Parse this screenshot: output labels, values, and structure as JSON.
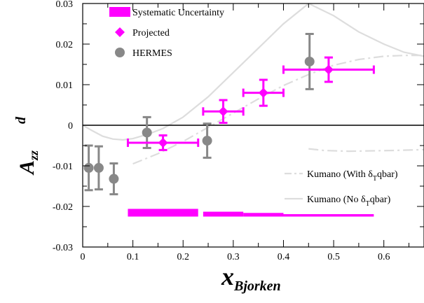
{
  "chart_data": {
    "type": "scatter",
    "title": "",
    "xlabel": {
      "main": "x",
      "sub": "Bjorken"
    },
    "ylabel": {
      "main": "A",
      "sub": "zz",
      "sup": "d"
    },
    "xlim": [
      0,
      0.68
    ],
    "ylim": [
      -0.03,
      0.03
    ],
    "x_ticks": [
      0,
      0.1,
      0.2,
      0.3,
      0.4,
      0.5,
      0.6
    ],
    "x_tick_labels": [
      "0",
      "0.1",
      "0.2",
      "0.3",
      "0.4",
      "0.5",
      "0.6"
    ],
    "y_ticks": [
      -0.03,
      -0.02,
      -0.01,
      0,
      0.01,
      0.02,
      0.03
    ],
    "y_tick_labels": [
      "-0.03",
      "-0.02",
      "-0.01",
      "0",
      "0.01",
      "0.02",
      "0.03"
    ],
    "zero_line": true,
    "grid": false,
    "legend_top": [
      {
        "label": "Systematic Uncertainty",
        "marker": "band",
        "color": "#ff00ff"
      },
      {
        "label": "Projected",
        "marker": "diamond",
        "color": "#ff00ff"
      },
      {
        "label": "HERMES",
        "marker": "circle",
        "color": "#888888"
      }
    ],
    "legend_bottom": [
      {
        "label_main": "Kumano (With δ",
        "label_sub": "T",
        "label_end": "qbar)",
        "style": "dash-dot",
        "color": "#dddddd"
      },
      {
        "label_main": "Kumano (No δ",
        "label_sub": "T",
        "label_end": "qbar)",
        "style": "solid",
        "color": "#dddddd"
      }
    ],
    "series": [
      {
        "name": "Projected",
        "marker": "diamond",
        "color": "#ff00ff",
        "points": [
          {
            "x": 0.16,
            "y": -0.0043,
            "xerr_low": 0.09,
            "xerr_high": 0.23,
            "yerr": 0.0018
          },
          {
            "x": 0.28,
            "y": 0.0034,
            "xerr_low": 0.24,
            "xerr_high": 0.32,
            "yerr": 0.0028
          },
          {
            "x": 0.36,
            "y": 0.008,
            "xerr_low": 0.32,
            "xerr_high": 0.4,
            "yerr": 0.0032
          },
          {
            "x": 0.49,
            "y": 0.0137,
            "xerr_low": 0.4,
            "xerr_high": 0.58,
            "yerr": 0.003
          }
        ]
      },
      {
        "name": "HERMES",
        "marker": "circle",
        "color": "#888888",
        "points": [
          {
            "x": 0.012,
            "y": -0.0105,
            "yerr": 0.0055
          },
          {
            "x": 0.032,
            "y": -0.0105,
            "yerr": 0.0053
          },
          {
            "x": 0.062,
            "y": -0.0132,
            "yerr": 0.0038
          },
          {
            "x": 0.128,
            "y": -0.0018,
            "yerr": 0.0038
          },
          {
            "x": 0.248,
            "y": -0.0038,
            "yerr": 0.0042
          },
          {
            "x": 0.452,
            "y": 0.0157,
            "yerr": 0.0068
          }
        ]
      }
    ],
    "systematic_bands": [
      {
        "x0": 0.09,
        "x1": 0.23,
        "y0": -0.0225,
        "y1": -0.0206
      },
      {
        "x0": 0.24,
        "x1": 0.32,
        "y0": -0.0225,
        "y1": -0.0213
      },
      {
        "x0": 0.32,
        "x1": 0.4,
        "y0": -0.0225,
        "y1": -0.0216
      },
      {
        "x0": 0.4,
        "x1": 0.58,
        "y0": -0.0225,
        "y1": -0.0219
      }
    ],
    "theory_curves": [
      {
        "name": "Kumano (With δTqbar)",
        "style": "dash-dot",
        "color": "#dddddd",
        "points": [
          [
            0.45,
            -0.0058
          ],
          [
            0.48,
            -0.0062
          ],
          [
            0.53,
            -0.0064
          ],
          [
            0.58,
            -0.0063
          ],
          [
            0.62,
            -0.0062
          ],
          [
            0.68,
            -0.006
          ]
        ]
      },
      {
        "name": "Kumano (No δTqbar)",
        "style": "solid",
        "color": "#dddddd",
        "points": [
          [
            0,
            0
          ],
          [
            0.02,
            -0.0014
          ],
          [
            0.04,
            -0.0027
          ],
          [
            0.06,
            -0.0034
          ],
          [
            0.08,
            -0.0036
          ],
          [
            0.1,
            -0.0033
          ],
          [
            0.13,
            -0.0022
          ],
          [
            0.16,
            -0.0008
          ],
          [
            0.2,
            0.002
          ],
          [
            0.25,
            0.007
          ],
          [
            0.3,
            0.013
          ],
          [
            0.35,
            0.019
          ],
          [
            0.4,
            0.025
          ],
          [
            0.43,
            0.028
          ],
          [
            0.45,
            0.03
          ]
        ]
      },
      {
        "name": "Kumano (With δTqbar)",
        "style": "dash-dot",
        "color": "#dddddd",
        "points": [
          [
            0.1,
            -0.0095
          ],
          [
            0.15,
            -0.007
          ],
          [
            0.2,
            -0.004
          ],
          [
            0.25,
            -0.0005
          ],
          [
            0.3,
            0.003
          ],
          [
            0.35,
            0.0065
          ],
          [
            0.4,
            0.0098
          ],
          [
            0.45,
            0.0125
          ],
          [
            0.5,
            0.0148
          ],
          [
            0.55,
            0.0162
          ],
          [
            0.6,
            0.017
          ],
          [
            0.64,
            0.0172
          ],
          [
            0.68,
            0.0172
          ]
        ]
      },
      {
        "name": "Kumano (No δTqbar)",
        "style": "solid",
        "color": "#dddddd",
        "points": [
          [
            0.45,
            0.03
          ],
          [
            0.5,
            0.027
          ],
          [
            0.55,
            0.023
          ],
          [
            0.6,
            0.02
          ],
          [
            0.64,
            0.018
          ],
          [
            0.68,
            0.017
          ]
        ]
      }
    ]
  }
}
